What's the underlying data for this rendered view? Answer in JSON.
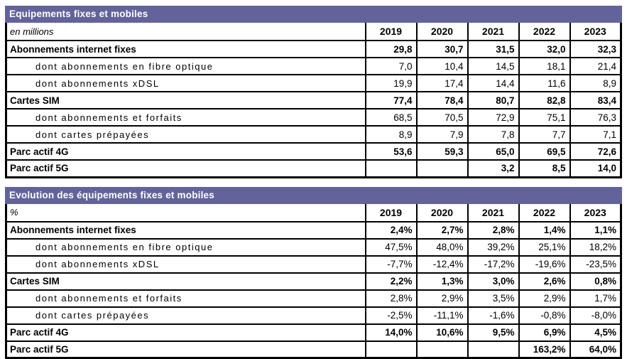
{
  "colors": {
    "title_band_bg": "#63639B",
    "title_band_text": "#ffffff",
    "border": "#000000",
    "text": "#000000",
    "background": "#ffffff"
  },
  "years": [
    "2019",
    "2020",
    "2021",
    "2022",
    "2023"
  ],
  "tables": [
    {
      "title": "Equipements fixes et mobiles",
      "unit_label": "en millions",
      "rows": [
        {
          "label": "Abonnements internet fixes",
          "bold": true,
          "indent": false,
          "values": [
            "29,8",
            "30,7",
            "31,5",
            "32,0",
            "32,3"
          ]
        },
        {
          "label": "dont abonnements en fibre optique",
          "bold": false,
          "indent": true,
          "values": [
            "7,0",
            "10,4",
            "14,5",
            "18,1",
            "21,4"
          ]
        },
        {
          "label": "dont abonnements xDSL",
          "bold": false,
          "indent": true,
          "values": [
            "19,9",
            "17,4",
            "14,4",
            "11,6",
            "8,9"
          ]
        },
        {
          "label": "Cartes SIM",
          "bold": true,
          "indent": false,
          "values": [
            "77,4",
            "78,4",
            "80,7",
            "82,8",
            "83,4"
          ]
        },
        {
          "label": "dont abonnements et forfaits",
          "bold": false,
          "indent": true,
          "values": [
            "68,5",
            "70,5",
            "72,9",
            "75,1",
            "76,3"
          ]
        },
        {
          "label": "dont cartes prépayées",
          "bold": false,
          "indent": true,
          "values": [
            "8,9",
            "7,9",
            "7,8",
            "7,7",
            "7,1"
          ]
        },
        {
          "label": "Parc actif 4G",
          "bold": true,
          "indent": false,
          "values": [
            "53,6",
            "59,3",
            "65,0",
            "69,5",
            "72,6"
          ]
        },
        {
          "label": "Parc actif 5G",
          "bold": true,
          "indent": false,
          "values": [
            "",
            "",
            "3,2",
            "8,5",
            "14,0"
          ]
        }
      ]
    },
    {
      "title": "Evolution des équipements fixes et mobiles",
      "unit_label": "%",
      "rows": [
        {
          "label": "Abonnements internet fixes",
          "bold": true,
          "indent": false,
          "values": [
            "2,4%",
            "2,7%",
            "2,8%",
            "1,4%",
            "1,1%"
          ]
        },
        {
          "label": "dont abonnements en fibre optique",
          "bold": false,
          "indent": true,
          "values": [
            "47,5%",
            "48,0%",
            "39,2%",
            "25,1%",
            "18,2%"
          ]
        },
        {
          "label": "dont abonnements xDSL",
          "bold": false,
          "indent": true,
          "values": [
            "-7,7%",
            "-12,4%",
            "-17,2%",
            "-19,6%",
            "-23,5%"
          ]
        },
        {
          "label": "Cartes SIM",
          "bold": true,
          "indent": false,
          "values": [
            "2,2%",
            "1,3%",
            "3,0%",
            "2,6%",
            "0,8%"
          ]
        },
        {
          "label": "dont abonnements et forfaits",
          "bold": false,
          "indent": true,
          "values": [
            "2,8%",
            "2,9%",
            "3,5%",
            "2,9%",
            "1,7%"
          ]
        },
        {
          "label": "dont cartes prépayées",
          "bold": false,
          "indent": true,
          "values": [
            "-2,5%",
            "-11,1%",
            "-1,6%",
            "-0,8%",
            "-8,0%"
          ]
        },
        {
          "label": "Parc actif 4G",
          "bold": true,
          "indent": false,
          "values": [
            "14,0%",
            "10,6%",
            "9,5%",
            "6,9%",
            "4,5%"
          ]
        },
        {
          "label": "Parc actif 5G",
          "bold": true,
          "indent": false,
          "values": [
            "",
            "",
            "",
            "163,2%",
            "64,0%"
          ]
        }
      ]
    }
  ]
}
